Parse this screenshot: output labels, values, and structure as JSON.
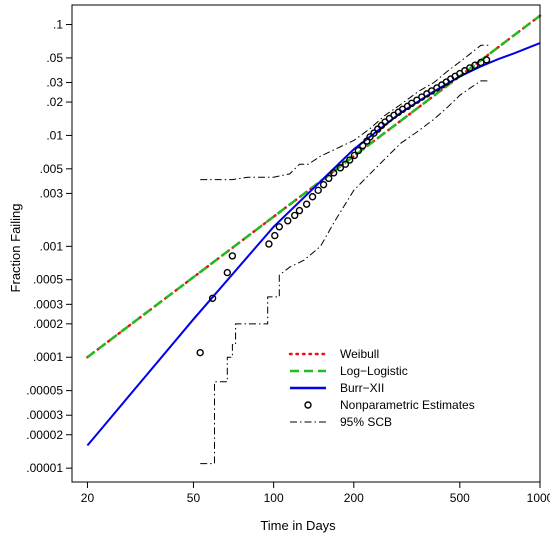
{
  "chart_data": {
    "type": "line",
    "xlabel": "Time in Days",
    "ylabel": "Fraction Failing",
    "xscale": "log",
    "yscale": "probability",
    "xlim": [
      17.5,
      1000
    ],
    "ylim": [
      7.5e-06,
      0.15
    ],
    "grid": false,
    "legend_position": "bottom-center",
    "x_ticks": [
      {
        "value": 20,
        "label": "20"
      },
      {
        "value": 50,
        "label": "50"
      },
      {
        "value": 100,
        "label": "100"
      },
      {
        "value": 200,
        "label": "200"
      },
      {
        "value": 500,
        "label": "500"
      },
      {
        "value": 1000,
        "label": "1000"
      }
    ],
    "y_ticks": [
      {
        "value": 0.1,
        "label": ".1"
      },
      {
        "value": 0.05,
        "label": ".05"
      },
      {
        "value": 0.03,
        "label": ".03"
      },
      {
        "value": 0.02,
        "label": ".02"
      },
      {
        "value": 0.01,
        "label": ".01"
      },
      {
        "value": 0.005,
        "label": ".005"
      },
      {
        "value": 0.003,
        "label": ".003"
      },
      {
        "value": 0.001,
        "label": ".001"
      },
      {
        "value": 0.0005,
        "label": ".0005"
      },
      {
        "value": 0.0003,
        "label": ".0003"
      },
      {
        "value": 0.0002,
        "label": ".0002"
      },
      {
        "value": 0.0001,
        "label": ".0001"
      },
      {
        "value": 5e-05,
        "label": ".00005"
      },
      {
        "value": 3e-05,
        "label": ".00003"
      },
      {
        "value": 2e-05,
        "label": ".00002"
      },
      {
        "value": 1e-05,
        "label": ".00001"
      }
    ],
    "series": [
      {
        "name": "Weibull",
        "style": "dotted",
        "color": "#ee1111",
        "x": [
          20,
          1000
        ],
        "y": [
          0.0001,
          0.12
        ]
      },
      {
        "name": "Log−Logistic",
        "style": "dashed",
        "color": "#22bb22",
        "x": [
          20,
          1000
        ],
        "y": [
          0.0001,
          0.12
        ]
      },
      {
        "name": "Burr−XII",
        "style": "solid",
        "color": "#0000ee",
        "x": [
          20,
          50,
          100,
          200,
          300,
          400,
          500,
          600,
          700,
          800,
          1000
        ],
        "y": [
          1.6e-05,
          0.00022,
          0.0015,
          0.0075,
          0.016,
          0.025,
          0.034,
          0.042,
          0.049,
          0.055,
          0.068
        ]
      },
      {
        "name": "Nonparametric Estimates",
        "type": "scatter",
        "marker": "circle",
        "x": [
          53,
          59,
          67,
          70,
          96,
          101,
          105,
          113,
          120,
          125,
          133,
          140,
          147,
          154,
          161,
          168,
          178,
          186,
          193,
          201,
          208,
          216,
          224,
          230,
          238,
          246,
          254,
          262,
          272,
          283,
          294,
          305,
          318,
          330,
          345,
          360,
          376,
          392,
          410,
          428,
          445,
          462,
          480,
          500,
          522,
          545,
          570,
          600,
          630
        ],
        "y": [
          0.00011,
          0.00034,
          0.00058,
          0.00082,
          0.00105,
          0.00125,
          0.0015,
          0.0017,
          0.0019,
          0.0021,
          0.0024,
          0.0028,
          0.0032,
          0.0036,
          0.0041,
          0.0046,
          0.0051,
          0.0055,
          0.006,
          0.0066,
          0.0073,
          0.0081,
          0.0089,
          0.0097,
          0.0105,
          0.0114,
          0.0123,
          0.0132,
          0.0142,
          0.0152,
          0.0162,
          0.0172,
          0.0183,
          0.0195,
          0.0208,
          0.0222,
          0.0237,
          0.0252,
          0.0268,
          0.0285,
          0.0303,
          0.0322,
          0.0341,
          0.0361,
          0.0383,
          0.0406,
          0.043,
          0.0455,
          0.048
        ]
      },
      {
        "name": "95% SCB (upper)",
        "style": "dashdot",
        "color": "#000000",
        "x": [
          53,
          70,
          80,
          100,
          115,
          125,
          135,
          150,
          170,
          200,
          230,
          260,
          300,
          350,
          400,
          450,
          500,
          550,
          600,
          650
        ],
        "y": [
          0.004,
          0.004,
          0.0042,
          0.0042,
          0.0045,
          0.0055,
          0.0055,
          0.0065,
          0.0075,
          0.009,
          0.0115,
          0.015,
          0.019,
          0.025,
          0.03,
          0.038,
          0.046,
          0.055,
          0.065,
          0.065
        ]
      },
      {
        "name": "95% SCB (lower)",
        "style": "dashdot",
        "color": "#000000",
        "x": [
          53,
          60,
          60,
          67,
          67,
          70,
          70,
          72,
          72,
          85,
          95,
          95,
          105,
          105,
          115,
          130,
          150,
          170,
          200,
          250,
          300,
          350,
          400,
          450,
          500,
          550,
          600,
          650
        ],
        "y": [
          1.1e-05,
          1.1e-05,
          6e-05,
          6e-05,
          0.0001,
          0.0001,
          0.00013,
          0.00013,
          0.0002,
          0.0002,
          0.0002,
          0.00035,
          0.00035,
          0.00055,
          0.00065,
          0.00075,
          0.001,
          0.0017,
          0.0032,
          0.0055,
          0.0085,
          0.011,
          0.014,
          0.018,
          0.023,
          0.027,
          0.031,
          0.031
        ]
      }
    ],
    "legend": [
      {
        "label": "Weibull",
        "style": "dotted",
        "color": "#ee1111"
      },
      {
        "label": "Log−Logistic",
        "style": "dashed",
        "color": "#22bb22"
      },
      {
        "label": "Burr−XII",
        "style": "solid",
        "color": "#0000ee"
      },
      {
        "label": "Nonparametric Estimates",
        "style": "marker",
        "color": "#000000"
      },
      {
        "label": "95% SCB",
        "style": "dashdot",
        "color": "#000000"
      }
    ]
  }
}
